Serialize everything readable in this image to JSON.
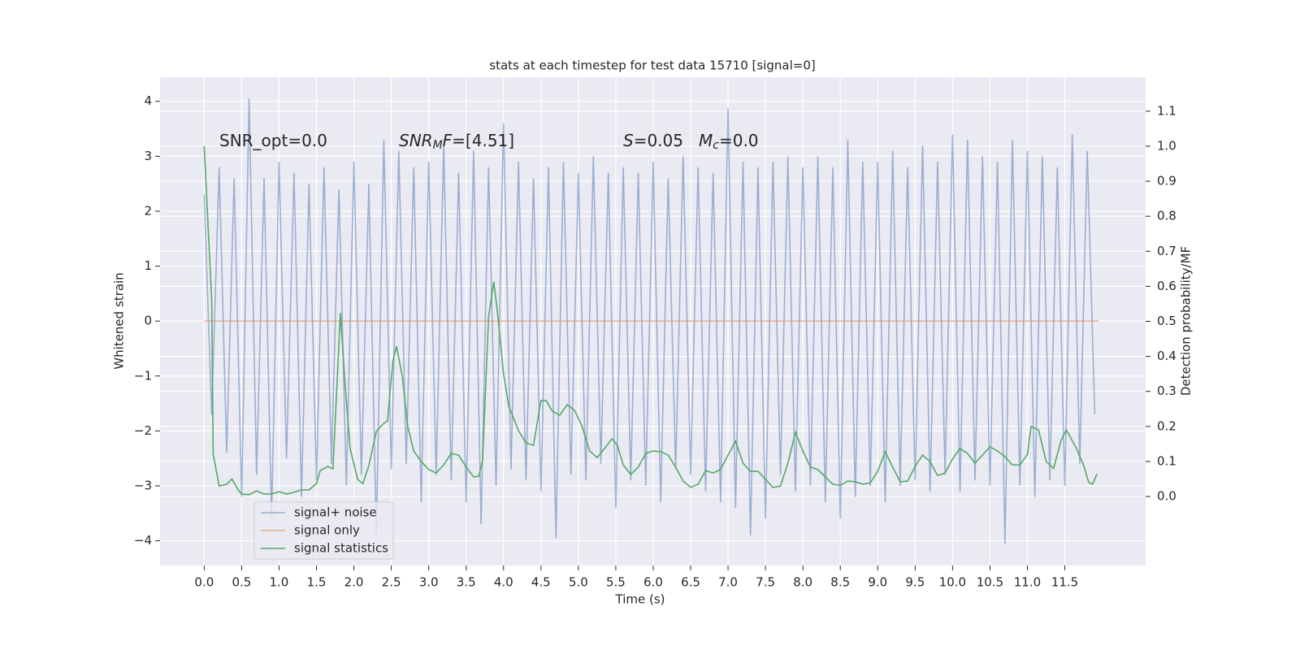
{
  "chart_data": {
    "type": "line",
    "title": "stats at each timestep for test data 15710 [signal=0]",
    "xlabel": "Time (s)",
    "ylabel": "Whitened strain",
    "y2label": "Detection probability/MF",
    "annotations": [
      [
        "SNR_opt=0.0"
      ],
      [
        "SNR",
        "M",
        "F",
        "=[4.51]"
      ],
      [
        "S",
        "=0.05",
        "M",
        "c",
        "=0.0"
      ]
    ],
    "xlim": [
      -0.59,
      12.58
    ],
    "ylim": [
      -4.45,
      4.44
    ],
    "y2lim": [
      -0.197,
      1.197
    ],
    "xticks": [
      {
        "value": 0,
        "label": "0.0"
      },
      0.5,
      {
        "value": 1,
        "label": "1.0"
      },
      1.5,
      {
        "value": 2,
        "label": "2.0"
      },
      2.5,
      {
        "value": 3,
        "label": "3.0"
      },
      3.5,
      {
        "value": 4,
        "label": "4.0"
      },
      4.5,
      {
        "value": 5,
        "label": "5.0"
      },
      5.5,
      {
        "value": 6,
        "label": "6.0"
      },
      6.5,
      {
        "value": 7,
        "label": "7.0"
      },
      7.5,
      {
        "value": 8,
        "label": "8.0"
      },
      8.5,
      {
        "value": 9,
        "label": "9.0"
      },
      9.5,
      {
        "value": 10,
        "label": "10.0"
      },
      10.5,
      {
        "value": 11,
        "label": "11.0"
      },
      11.5
    ],
    "yticks": [
      {
        "value": -4,
        "label": "−4"
      },
      {
        "value": -3,
        "label": "−3"
      },
      {
        "value": -2,
        "label": "−2"
      },
      {
        "value": -1,
        "label": "−1"
      },
      0,
      1,
      2,
      3,
      4
    ],
    "y2ticks": [
      {
        "value": 0,
        "label": "0.0"
      },
      0.1,
      0.2,
      0.3,
      0.4,
      0.5,
      0.6,
      0.7,
      0.8,
      0.9,
      {
        "value": 1,
        "label": "1.0"
      },
      1.1
    ],
    "grid": true,
    "legend": "lower left",
    "series": [
      {
        "name": "signal+ noise",
        "color": "#4c72b0",
        "opacity": 0.5,
        "x": [
          0,
          0.1,
          0.2,
          0.3,
          0.4,
          0.5,
          0.6,
          0.7,
          0.8,
          0.9,
          1,
          1.1,
          1.2,
          1.3,
          1.4,
          1.5,
          1.6,
          1.7,
          1.8,
          1.9,
          2,
          2.1,
          2.2,
          2.3,
          2.4,
          2.5,
          2.6,
          2.7,
          2.8,
          2.9,
          3,
          3.1,
          3.2,
          3.3,
          3.4,
          3.5,
          3.6,
          3.7,
          3.8,
          3.9,
          4,
          4.1,
          4.2,
          4.3,
          4.4,
          4.5,
          4.6,
          4.7,
          4.8,
          4.9,
          5,
          5.1,
          5.2,
          5.3,
          5.4,
          5.5,
          5.6,
          5.7,
          5.8,
          5.9,
          6,
          6.1,
          6.2,
          6.3,
          6.4,
          6.5,
          6.6,
          6.7,
          6.8,
          6.9,
          7,
          7.1,
          7.2,
          7.3,
          7.4,
          7.5,
          7.6,
          7.7,
          7.8,
          7.9,
          8,
          8.1,
          8.2,
          8.3,
          8.4,
          8.5,
          8.6,
          8.7,
          8.8,
          8.9,
          9,
          9.1,
          9.2,
          9.3,
          9.4,
          9.5,
          9.6,
          9.7,
          9.8,
          9.9,
          10,
          10.1,
          10.2,
          10.3,
          10.4,
          10.5,
          10.6,
          10.7,
          10.8,
          10.9,
          11,
          11.1,
          11.2,
          11.3,
          11.4,
          11.5,
          11.6,
          11.7,
          11.8,
          11.9
        ],
        "values": [
          2.3,
          -1.7,
          2.8,
          -2.4,
          2.6,
          -3.2,
          4.05,
          -2.8,
          2.6,
          -3.6,
          2.9,
          -2.5,
          2.7,
          -3.2,
          2.5,
          -2.9,
          2.8,
          -2.6,
          2.4,
          -3.0,
          2.9,
          -2.8,
          2.5,
          -3.9,
          3.3,
          -2.7,
          3.1,
          -2.6,
          2.8,
          -3.3,
          2.9,
          -2.8,
          3.2,
          -2.9,
          2.7,
          -3.3,
          3.1,
          -3.7,
          2.8,
          -3.0,
          3.6,
          -2.7,
          2.9,
          -2.9,
          2.6,
          -3.1,
          2.8,
          -3.95,
          2.9,
          -2.8,
          2.7,
          -2.9,
          3.0,
          -2.6,
          2.7,
          -3.4,
          2.8,
          -2.9,
          2.7,
          -3.0,
          2.9,
          -3.3,
          2.6,
          -2.7,
          3.0,
          -2.8,
          2.8,
          -3.1,
          2.7,
          -3.3,
          3.87,
          -3.4,
          2.9,
          -3.9,
          2.8,
          -3.6,
          2.9,
          -2.8,
          3.0,
          -3.1,
          2.8,
          -3.0,
          3.0,
          -3.3,
          2.8,
          -3.6,
          3.3,
          -3.2,
          2.9,
          -3.0,
          2.9,
          -3.3,
          3.1,
          -3.0,
          2.8,
          -2.9,
          3.2,
          -3.1,
          2.9,
          -2.8,
          3.4,
          -3.1,
          3.3,
          -2.9,
          3.0,
          -3.0,
          2.9,
          -4.05,
          3.3,
          -3.0,
          3.1,
          -3.2,
          3.0,
          -2.9,
          2.8,
          -3.0,
          3.4,
          -2.6,
          3.1,
          -1.7
        ]
      },
      {
        "name": "signal only",
        "color": "#dd8452",
        "opacity": 0.6,
        "x": [
          0,
          11.95
        ],
        "values": [
          0,
          0
        ]
      },
      {
        "name": "signal statistics",
        "color": "#55a868",
        "opacity": 1,
        "axis": "y2",
        "x": [
          0,
          0.1,
          0.12,
          0.2,
          0.3,
          0.37,
          0.45,
          0.5,
          0.6,
          0.7,
          0.8,
          0.9,
          1,
          1.1,
          1.2,
          1.3,
          1.4,
          1.5,
          1.55,
          1.65,
          1.72,
          1.82,
          1.88,
          1.95,
          2.05,
          2.12,
          2.2,
          2.3,
          2.4,
          2.45,
          2.52,
          2.57,
          2.65,
          2.72,
          2.8,
          2.9,
          3,
          3.1,
          3.2,
          3.3,
          3.4,
          3.5,
          3.6,
          3.67,
          3.72,
          3.8,
          3.87,
          3.92,
          4,
          4.07,
          4.2,
          4.3,
          4.4,
          4.5,
          4.57,
          4.65,
          4.75,
          4.85,
          4.95,
          5.05,
          5.15,
          5.25,
          5.35,
          5.45,
          5.52,
          5.6,
          5.7,
          5.8,
          5.9,
          6,
          6.1,
          6.2,
          6.3,
          6.4,
          6.5,
          6.6,
          6.7,
          6.8,
          6.9,
          7,
          7.1,
          7.2,
          7.3,
          7.4,
          7.5,
          7.6,
          7.7,
          7.8,
          7.9,
          8,
          8.1,
          8.2,
          8.3,
          8.4,
          8.5,
          8.6,
          8.7,
          8.8,
          8.9,
          9,
          9.1,
          9.2,
          9.3,
          9.4,
          9.5,
          9.6,
          9.7,
          9.8,
          9.9,
          10,
          10.1,
          10.2,
          10.3,
          10.4,
          10.5,
          10.6,
          10.7,
          10.8,
          10.9,
          11,
          11.05,
          11.15,
          11.25,
          11.35,
          11.45,
          11.52,
          11.65,
          11.75,
          11.82,
          11.87,
          11.93
        ],
        "values": [
          1.0,
          0.56,
          0.12,
          0.03,
          0.035,
          0.05,
          0.02,
          0.007,
          0.005,
          0.016,
          0.007,
          0.007,
          0.014,
          0.007,
          0.012,
          0.019,
          0.019,
          0.037,
          0.074,
          0.086,
          0.079,
          0.524,
          0.327,
          0.137,
          0.049,
          0.037,
          0.088,
          0.186,
          0.209,
          0.216,
          0.385,
          0.429,
          0.339,
          0.2,
          0.13,
          0.1,
          0.077,
          0.067,
          0.09,
          0.123,
          0.118,
          0.084,
          0.056,
          0.058,
          0.104,
          0.513,
          0.613,
          0.524,
          0.35,
          0.258,
          0.188,
          0.153,
          0.146,
          0.274,
          0.274,
          0.244,
          0.232,
          0.262,
          0.246,
          0.2,
          0.13,
          0.111,
          0.137,
          0.165,
          0.146,
          0.09,
          0.063,
          0.084,
          0.123,
          0.13,
          0.128,
          0.118,
          0.084,
          0.044,
          0.026,
          0.035,
          0.074,
          0.067,
          0.077,
          0.118,
          0.158,
          0.095,
          0.072,
          0.072,
          0.049,
          0.026,
          0.03,
          0.095,
          0.183,
          0.13,
          0.084,
          0.077,
          0.056,
          0.035,
          0.032,
          0.044,
          0.042,
          0.035,
          0.039,
          0.072,
          0.128,
          0.084,
          0.042,
          0.044,
          0.086,
          0.118,
          0.1,
          0.06,
          0.067,
          0.107,
          0.137,
          0.123,
          0.095,
          0.118,
          0.142,
          0.13,
          0.114,
          0.09,
          0.09,
          0.12,
          0.2,
          0.19,
          0.1,
          0.08,
          0.16,
          0.19,
          0.14,
          0.09,
          0.04,
          0.035,
          0.065
        ]
      }
    ]
  }
}
